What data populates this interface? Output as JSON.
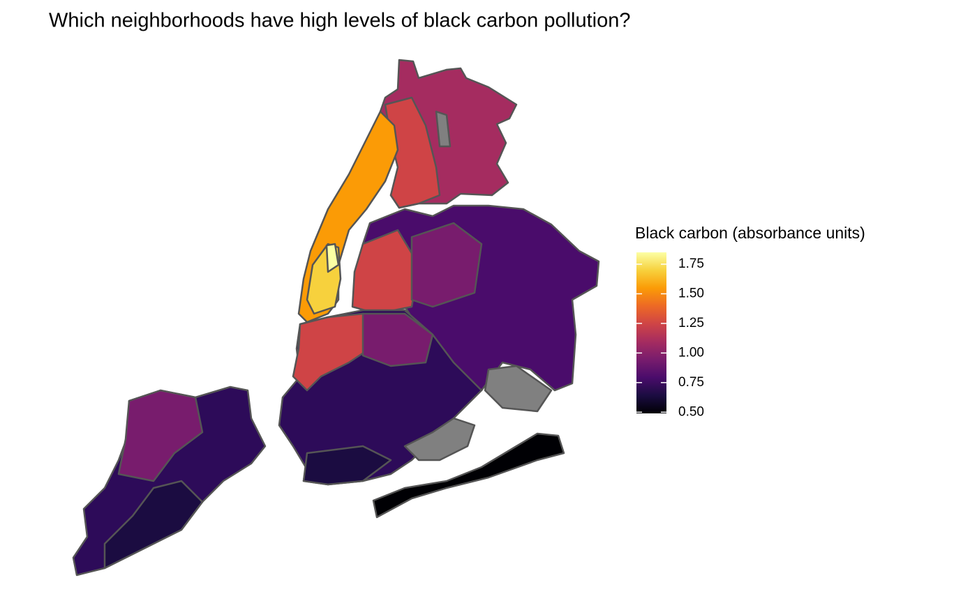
{
  "chart_data": {
    "type": "choropleth",
    "title": "Which neighborhoods have high levels of black carbon pollution?",
    "legend_title": "Black carbon (absorbance units)",
    "colormap": [
      "#000004",
      "#1b0c41",
      "#4a0c6b",
      "#781c6d",
      "#a52c60",
      "#cf4446",
      "#ed6925",
      "#fb9b06",
      "#f7d13d",
      "#fcffa4"
    ],
    "clim": [
      0.49,
      1.85
    ],
    "cticks": [
      {
        "value": 0.5,
        "label": "0.50"
      },
      0.75,
      {
        "value": 1.0,
        "label": "1.00"
      },
      1.25,
      {
        "value": 1.5,
        "label": "1.50"
      },
      1.75
    ]
  }
}
